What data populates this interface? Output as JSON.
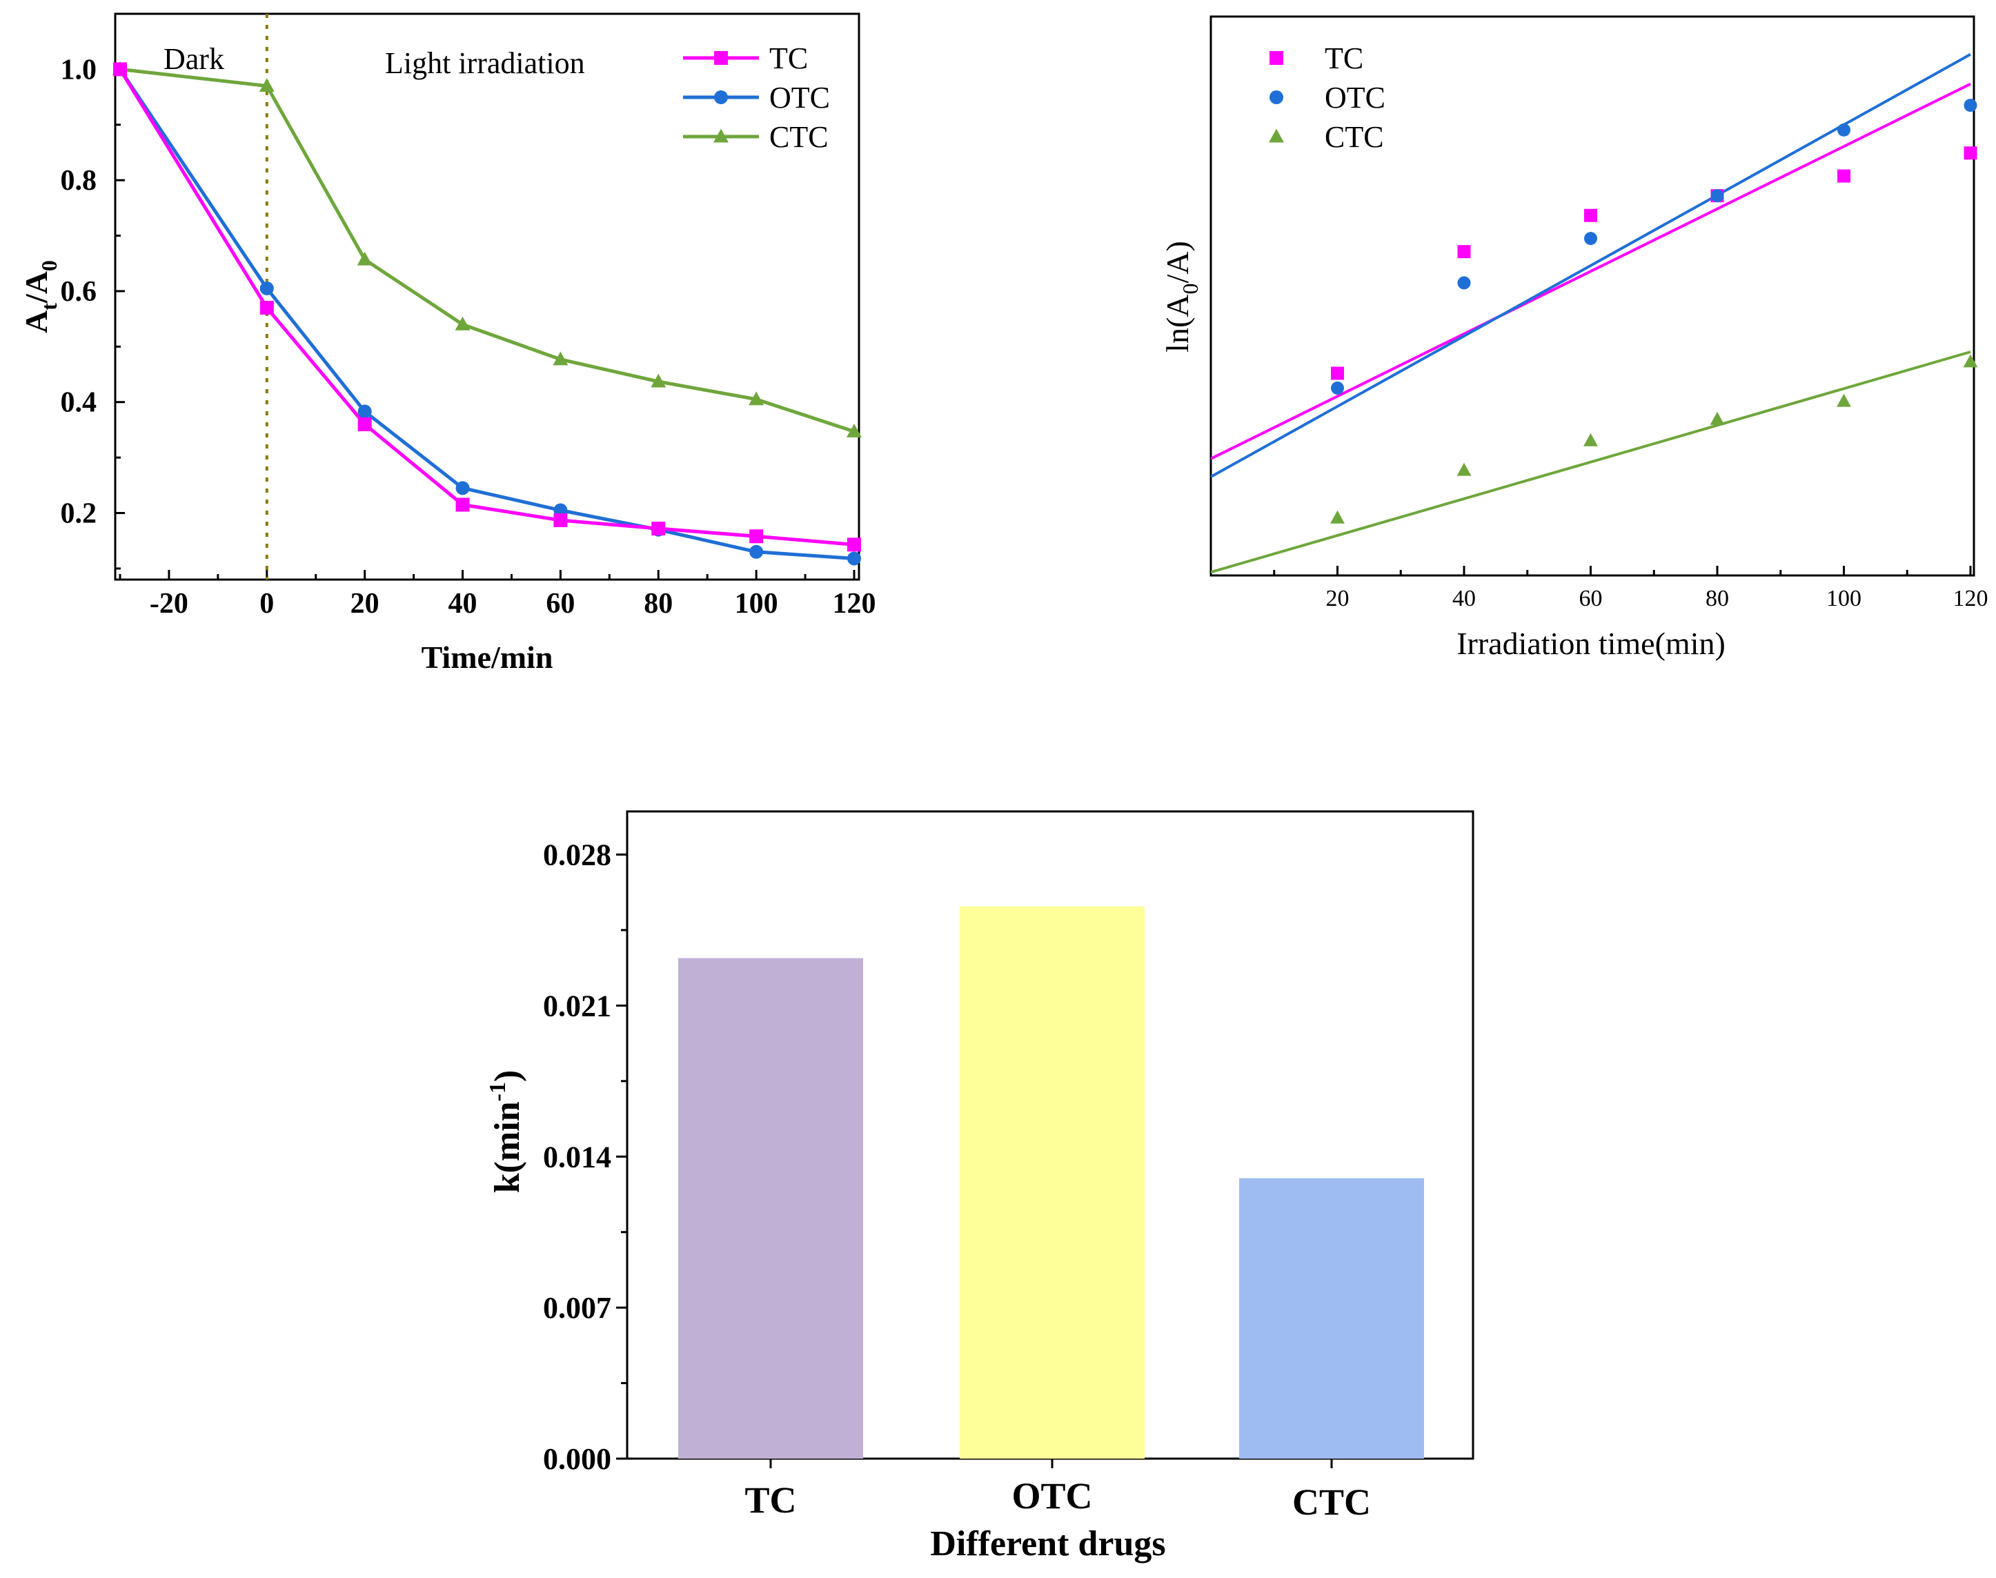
{
  "chart_data": [
    {
      "type": "line",
      "xlabel": "Time/min",
      "ylabel": {
        "main": "A",
        "sub1": "t",
        "mid": "/A",
        "sub2": "0"
      },
      "xlim": [
        -30,
        120
      ],
      "ylim": [
        0.08,
        1.1
      ],
      "xticks": [
        -20,
        0,
        20,
        40,
        60,
        80,
        100,
        120
      ],
      "xtick_labels": [
        "-20",
        "0",
        "20",
        "40",
        "60",
        "80",
        "100",
        "120"
      ],
      "yticks": [
        0.2,
        0.4,
        0.6,
        0.8,
        1.0
      ],
      "ytick_labels": [
        "0.2",
        "0.4",
        "0.6",
        "0.8",
        "1.0"
      ],
      "annotations": {
        "dark": "Dark",
        "light": "Light irradiation"
      },
      "divider_x": 0,
      "legend_position": "top-right",
      "x": [
        -30,
        0,
        20,
        40,
        60,
        80,
        100,
        120
      ],
      "series": [
        {
          "name": "TC",
          "color": "#ff00ff",
          "marker": "square",
          "values": [
            1.0,
            0.57,
            0.36,
            0.215,
            0.187,
            0.172,
            0.158,
            0.143
          ]
        },
        {
          "name": "OTC",
          "color": "#1f6fd6",
          "marker": "circle",
          "values": [
            1.0,
            0.605,
            0.383,
            0.245,
            0.205,
            0.17,
            0.13,
            0.118
          ]
        },
        {
          "name": "CTC",
          "color": "#6fa63c",
          "marker": "triangle",
          "values": [
            1.0,
            0.97,
            0.657,
            0.54,
            0.477,
            0.437,
            0.405,
            0.347
          ]
        }
      ]
    },
    {
      "type": "scatter",
      "xlabel": "Irradiation time(min)",
      "ylabel": {
        "pre": "ln(A",
        "sub": "0",
        "post": "/A)"
      },
      "xlim": [
        0,
        120
      ],
      "ylim": [
        0,
        3.4
      ],
      "xticks": [
        20,
        40,
        60,
        80,
        100,
        120
      ],
      "xtick_labels": [
        "20",
        "40",
        "60",
        "80",
        "100",
        "120"
      ],
      "show_y_ticklabels": false,
      "legend_position": "top-left",
      "x": [
        0,
        20,
        40,
        60,
        80,
        100,
        120
      ],
      "series": [
        {
          "name": "TC",
          "color": "#ff00ff",
          "marker": "square",
          "values": [
            null,
            1.23,
            1.97,
            2.19,
            2.31,
            2.43,
            2.57
          ],
          "fit": [
            0.71,
            2.99
          ]
        },
        {
          "name": "OTC",
          "color": "#1f6fd6",
          "marker": "circle",
          "values": [
            null,
            1.14,
            1.78,
            2.05,
            2.31,
            2.71,
            2.86
          ],
          "fit": [
            0.6,
            3.17
          ]
        },
        {
          "name": "CTC",
          "color": "#6fa63c",
          "marker": "triangle",
          "values": [
            null,
            0.35,
            0.64,
            0.82,
            0.95,
            1.06,
            1.3
          ],
          "fit": [
            0.02,
            1.36
          ]
        }
      ]
    },
    {
      "type": "bar",
      "xlabel": "Different drugs",
      "ylabel": {
        "pre": "k(min",
        "sup": "-1",
        "post": ")"
      },
      "categories": [
        "TC",
        "OTC",
        "CTC"
      ],
      "values": [
        0.0232,
        0.0256,
        0.013
      ],
      "colors": [
        "#c0b0d6",
        "#ffff99",
        "#9fbcf2"
      ],
      "ylim": [
        0,
        0.03
      ],
      "yticks": [
        0.0,
        0.007,
        0.014,
        0.021,
        0.028
      ],
      "ytick_labels": [
        "0.000",
        "0.007",
        "0.014",
        "0.021",
        "0.028"
      ]
    }
  ]
}
